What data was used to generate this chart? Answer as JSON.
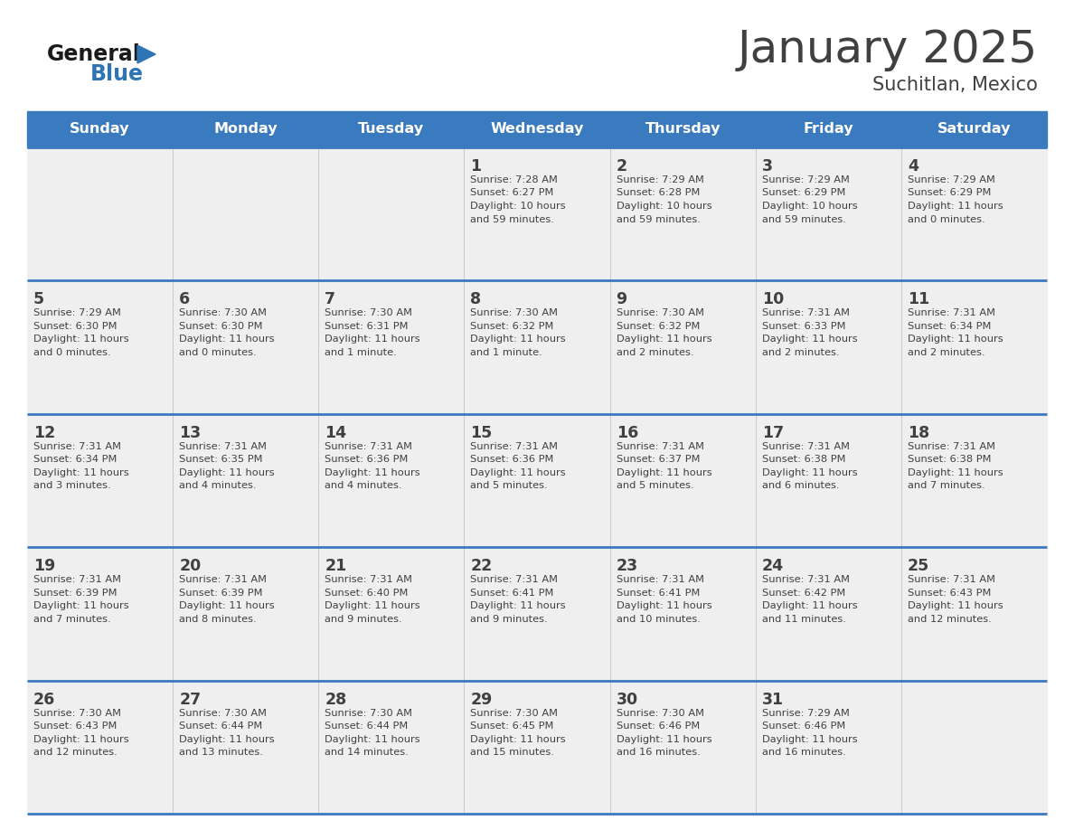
{
  "title": "January 2025",
  "subtitle": "Suchitlan, Mexico",
  "days_of_week": [
    "Sunday",
    "Monday",
    "Tuesday",
    "Wednesday",
    "Thursday",
    "Friday",
    "Saturday"
  ],
  "header_bg": "#3a7abf",
  "header_text": "#ffffff",
  "cell_bg_light": "#efefef",
  "cell_bg_white": "#ffffff",
  "row_line_color": "#3a7abf",
  "text_color": "#404040",
  "logo_general_color": "#1a1a1a",
  "logo_blue_color": "#2e75b6",
  "calendar": [
    [
      null,
      null,
      null,
      {
        "day": 1,
        "sunrise": "7:28 AM",
        "sunset": "6:27 PM",
        "daylight_a": "Daylight: 10 hours",
        "daylight_b": "and 59 minutes."
      },
      {
        "day": 2,
        "sunrise": "7:29 AM",
        "sunset": "6:28 PM",
        "daylight_a": "Daylight: 10 hours",
        "daylight_b": "and 59 minutes."
      },
      {
        "day": 3,
        "sunrise": "7:29 AM",
        "sunset": "6:29 PM",
        "daylight_a": "Daylight: 10 hours",
        "daylight_b": "and 59 minutes."
      },
      {
        "day": 4,
        "sunrise": "7:29 AM",
        "sunset": "6:29 PM",
        "daylight_a": "Daylight: 11 hours",
        "daylight_b": "and 0 minutes."
      }
    ],
    [
      {
        "day": 5,
        "sunrise": "7:29 AM",
        "sunset": "6:30 PM",
        "daylight_a": "Daylight: 11 hours",
        "daylight_b": "and 0 minutes."
      },
      {
        "day": 6,
        "sunrise": "7:30 AM",
        "sunset": "6:30 PM",
        "daylight_a": "Daylight: 11 hours",
        "daylight_b": "and 0 minutes."
      },
      {
        "day": 7,
        "sunrise": "7:30 AM",
        "sunset": "6:31 PM",
        "daylight_a": "Daylight: 11 hours",
        "daylight_b": "and 1 minute."
      },
      {
        "day": 8,
        "sunrise": "7:30 AM",
        "sunset": "6:32 PM",
        "daylight_a": "Daylight: 11 hours",
        "daylight_b": "and 1 minute."
      },
      {
        "day": 9,
        "sunrise": "7:30 AM",
        "sunset": "6:32 PM",
        "daylight_a": "Daylight: 11 hours",
        "daylight_b": "and 2 minutes."
      },
      {
        "day": 10,
        "sunrise": "7:31 AM",
        "sunset": "6:33 PM",
        "daylight_a": "Daylight: 11 hours",
        "daylight_b": "and 2 minutes."
      },
      {
        "day": 11,
        "sunrise": "7:31 AM",
        "sunset": "6:34 PM",
        "daylight_a": "Daylight: 11 hours",
        "daylight_b": "and 2 minutes."
      }
    ],
    [
      {
        "day": 12,
        "sunrise": "7:31 AM",
        "sunset": "6:34 PM",
        "daylight_a": "Daylight: 11 hours",
        "daylight_b": "and 3 minutes."
      },
      {
        "day": 13,
        "sunrise": "7:31 AM",
        "sunset": "6:35 PM",
        "daylight_a": "Daylight: 11 hours",
        "daylight_b": "and 4 minutes."
      },
      {
        "day": 14,
        "sunrise": "7:31 AM",
        "sunset": "6:36 PM",
        "daylight_a": "Daylight: 11 hours",
        "daylight_b": "and 4 minutes."
      },
      {
        "day": 15,
        "sunrise": "7:31 AM",
        "sunset": "6:36 PM",
        "daylight_a": "Daylight: 11 hours",
        "daylight_b": "and 5 minutes."
      },
      {
        "day": 16,
        "sunrise": "7:31 AM",
        "sunset": "6:37 PM",
        "daylight_a": "Daylight: 11 hours",
        "daylight_b": "and 5 minutes."
      },
      {
        "day": 17,
        "sunrise": "7:31 AM",
        "sunset": "6:38 PM",
        "daylight_a": "Daylight: 11 hours",
        "daylight_b": "and 6 minutes."
      },
      {
        "day": 18,
        "sunrise": "7:31 AM",
        "sunset": "6:38 PM",
        "daylight_a": "Daylight: 11 hours",
        "daylight_b": "and 7 minutes."
      }
    ],
    [
      {
        "day": 19,
        "sunrise": "7:31 AM",
        "sunset": "6:39 PM",
        "daylight_a": "Daylight: 11 hours",
        "daylight_b": "and 7 minutes."
      },
      {
        "day": 20,
        "sunrise": "7:31 AM",
        "sunset": "6:39 PM",
        "daylight_a": "Daylight: 11 hours",
        "daylight_b": "and 8 minutes."
      },
      {
        "day": 21,
        "sunrise": "7:31 AM",
        "sunset": "6:40 PM",
        "daylight_a": "Daylight: 11 hours",
        "daylight_b": "and 9 minutes."
      },
      {
        "day": 22,
        "sunrise": "7:31 AM",
        "sunset": "6:41 PM",
        "daylight_a": "Daylight: 11 hours",
        "daylight_b": "and 9 minutes."
      },
      {
        "day": 23,
        "sunrise": "7:31 AM",
        "sunset": "6:41 PM",
        "daylight_a": "Daylight: 11 hours",
        "daylight_b": "and 10 minutes."
      },
      {
        "day": 24,
        "sunrise": "7:31 AM",
        "sunset": "6:42 PM",
        "daylight_a": "Daylight: 11 hours",
        "daylight_b": "and 11 minutes."
      },
      {
        "day": 25,
        "sunrise": "7:31 AM",
        "sunset": "6:43 PM",
        "daylight_a": "Daylight: 11 hours",
        "daylight_b": "and 12 minutes."
      }
    ],
    [
      {
        "day": 26,
        "sunrise": "7:30 AM",
        "sunset": "6:43 PM",
        "daylight_a": "Daylight: 11 hours",
        "daylight_b": "and 12 minutes."
      },
      {
        "day": 27,
        "sunrise": "7:30 AM",
        "sunset": "6:44 PM",
        "daylight_a": "Daylight: 11 hours",
        "daylight_b": "and 13 minutes."
      },
      {
        "day": 28,
        "sunrise": "7:30 AM",
        "sunset": "6:44 PM",
        "daylight_a": "Daylight: 11 hours",
        "daylight_b": "and 14 minutes."
      },
      {
        "day": 29,
        "sunrise": "7:30 AM",
        "sunset": "6:45 PM",
        "daylight_a": "Daylight: 11 hours",
        "daylight_b": "and 15 minutes."
      },
      {
        "day": 30,
        "sunrise": "7:30 AM",
        "sunset": "6:46 PM",
        "daylight_a": "Daylight: 11 hours",
        "daylight_b": "and 16 minutes."
      },
      {
        "day": 31,
        "sunrise": "7:29 AM",
        "sunset": "6:46 PM",
        "daylight_a": "Daylight: 11 hours",
        "daylight_b": "and 16 minutes."
      },
      null
    ]
  ]
}
